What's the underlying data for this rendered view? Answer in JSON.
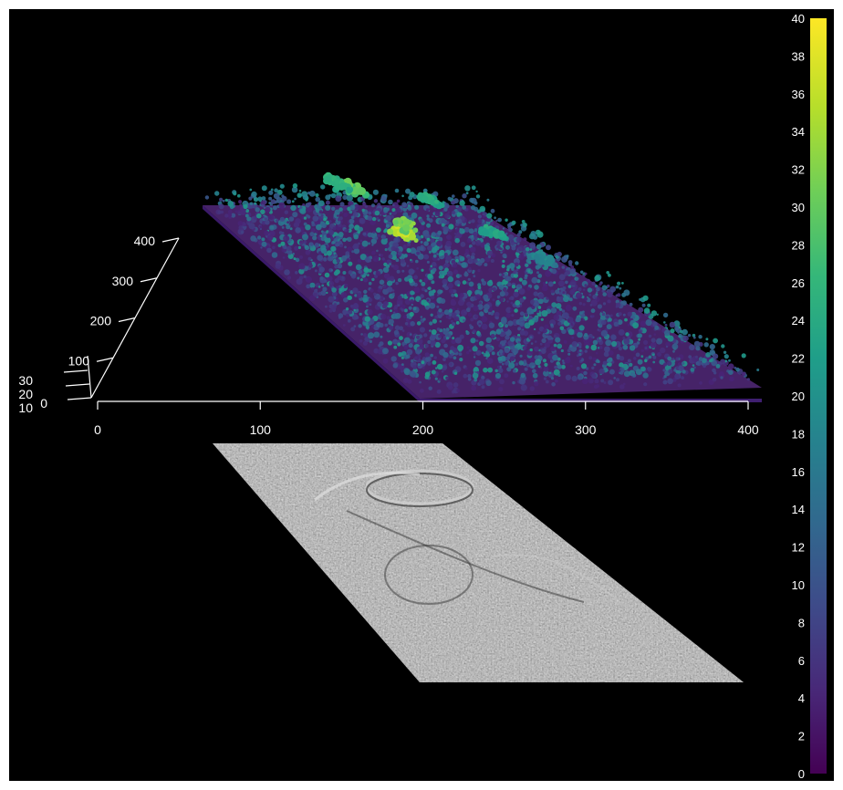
{
  "chart_data": {
    "type": "surface-3d",
    "title": "",
    "x_axis": {
      "label": "",
      "range": [
        0,
        400
      ],
      "ticks": [
        "0",
        "100",
        "200",
        "300",
        "400"
      ]
    },
    "y_axis": {
      "label": "",
      "range": [
        0,
        400
      ],
      "ticks": [
        "0",
        "100",
        "200",
        "300",
        "400"
      ]
    },
    "z_axis": {
      "label": "",
      "range": [
        10,
        30
      ],
      "ticks": [
        "10",
        "20",
        "30"
      ]
    },
    "colorbar": {
      "range": [
        0,
        40
      ],
      "ticks": [
        "0",
        "2",
        "4",
        "6",
        "8",
        "10",
        "12",
        "14",
        "16",
        "18",
        "20",
        "22",
        "24",
        "26",
        "28",
        "30",
        "32",
        "34",
        "36",
        "38",
        "40"
      ],
      "colormap": "viridis",
      "placement": "right"
    },
    "layers": [
      "canopy height point cloud",
      "grayscale hillshade ground surface"
    ],
    "canopy_peaks": [
      {
        "x": 175,
        "y": 265,
        "z": 38
      },
      {
        "x": 200,
        "y": 290,
        "z": 34
      },
      {
        "x": 200,
        "y": 375,
        "z": 32
      },
      {
        "x": 195,
        "y": 395,
        "z": 28
      },
      {
        "x": 300,
        "y": 360,
        "z": 26
      },
      {
        "x": 320,
        "y": 290,
        "z": 25
      },
      {
        "x": 345,
        "y": 245,
        "z": 20
      }
    ]
  },
  "colors": {
    "background": "#000000",
    "axis": "#ffffff",
    "viridis": [
      "#440154",
      "#482878",
      "#3e4a89",
      "#31688e",
      "#26828e",
      "#1f9e89",
      "#35b779",
      "#6ece58",
      "#b5de2b",
      "#fde725"
    ]
  }
}
